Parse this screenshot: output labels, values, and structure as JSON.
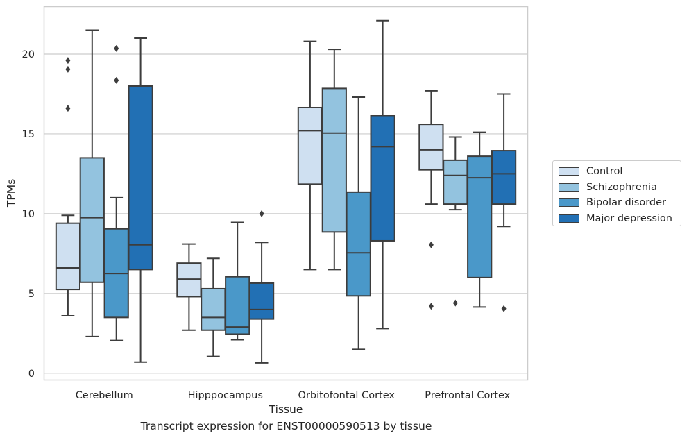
{
  "caption": "Transcript expression for ENST00000590513 by tissue",
  "colors": {
    "Control": "#cfe0f1",
    "Schizophrenia": "#93c3df",
    "Bipolar disorder": "#4a98c9",
    "Major depression": "#2270b4"
  },
  "chart_data": {
    "type": "box",
    "xlabel": "Tissue",
    "ylabel": "TPMs",
    "ylim": [
      -0.4,
      23
    ],
    "yticks": [
      0,
      5,
      10,
      15,
      20
    ],
    "grid": true,
    "legend_placement": "outside right",
    "categories": [
      "Cerebellum",
      "Hipppocampus",
      "Orbitofontal Cortex",
      "Prefrontal Cortex"
    ],
    "series": [
      {
        "name": "Control",
        "boxes": [
          {
            "whislo": 3.6,
            "q1": 5.25,
            "med": 6.6,
            "q3": 9.4,
            "whishi": 9.9,
            "fliers": [
              16.6,
              19.05,
              19.6
            ]
          },
          {
            "whislo": 2.7,
            "q1": 4.8,
            "med": 5.9,
            "q3": 6.9,
            "whishi": 8.1,
            "fliers": []
          },
          {
            "whislo": 6.5,
            "q1": 11.85,
            "med": 15.2,
            "q3": 16.65,
            "whishi": 20.8,
            "fliers": []
          },
          {
            "whislo": 10.6,
            "q1": 12.75,
            "med": 14.0,
            "q3": 15.6,
            "whishi": 17.7,
            "fliers": [
              8.05,
              4.2
            ]
          }
        ]
      },
      {
        "name": "Schizophrenia",
        "boxes": [
          {
            "whislo": 2.3,
            "q1": 5.7,
            "med": 9.75,
            "q3": 13.5,
            "whishi": 21.5,
            "fliers": []
          },
          {
            "whislo": 1.05,
            "q1": 2.7,
            "med": 3.5,
            "q3": 5.3,
            "whishi": 7.2,
            "fliers": []
          },
          {
            "whislo": 6.5,
            "q1": 8.85,
            "med": 15.05,
            "q3": 17.85,
            "whishi": 20.3,
            "fliers": []
          },
          {
            "whislo": 10.25,
            "q1": 10.6,
            "med": 12.4,
            "q3": 13.35,
            "whishi": 14.8,
            "fliers": [
              4.4
            ]
          }
        ]
      },
      {
        "name": "Bipolar disorder",
        "boxes": [
          {
            "whislo": 2.05,
            "q1": 3.5,
            "med": 6.25,
            "q3": 9.05,
            "whishi": 11.0,
            "fliers": [
              18.35,
              20.35
            ]
          },
          {
            "whislo": 2.1,
            "q1": 2.45,
            "med": 2.9,
            "q3": 6.05,
            "whishi": 9.45,
            "fliers": []
          },
          {
            "whislo": 1.5,
            "q1": 4.85,
            "med": 7.55,
            "q3": 11.35,
            "whishi": 17.3,
            "fliers": []
          },
          {
            "whislo": 4.15,
            "q1": 6.0,
            "med": 12.25,
            "q3": 13.6,
            "whishi": 15.1,
            "fliers": []
          }
        ]
      },
      {
        "name": "Major depression",
        "boxes": [
          {
            "whislo": 0.7,
            "q1": 6.5,
            "med": 8.05,
            "q3": 18.0,
            "whishi": 21.0,
            "fliers": []
          },
          {
            "whislo": 0.65,
            "q1": 3.4,
            "med": 4.0,
            "q3": 5.65,
            "whishi": 8.2,
            "fliers": [
              10.0
            ]
          },
          {
            "whislo": 2.8,
            "q1": 8.3,
            "med": 14.2,
            "q3": 16.15,
            "whishi": 22.1,
            "fliers": []
          },
          {
            "whislo": 9.2,
            "q1": 10.6,
            "med": 12.5,
            "q3": 13.95,
            "whishi": 17.5,
            "fliers": [
              4.05
            ]
          }
        ]
      }
    ]
  }
}
